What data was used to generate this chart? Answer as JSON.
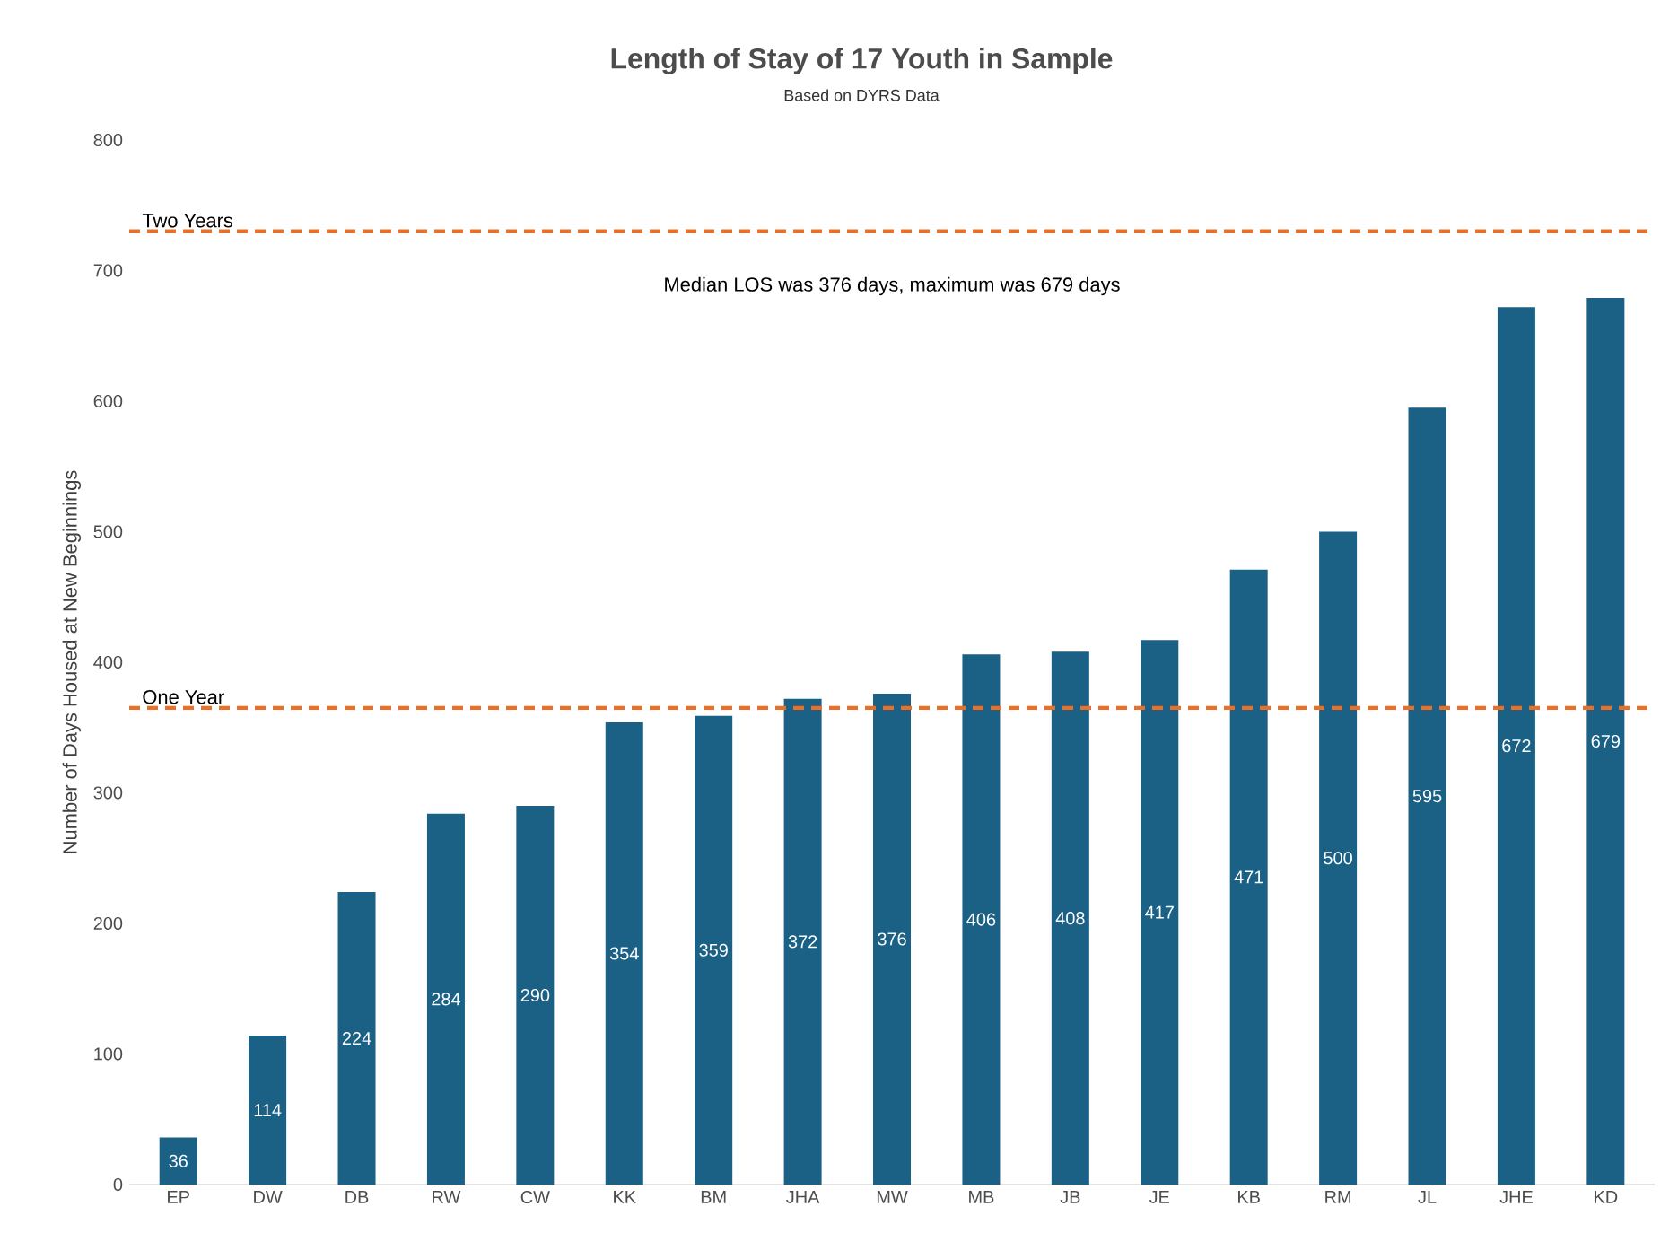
{
  "chart_data": {
    "type": "bar",
    "title": "Length of Stay of 17 Youth in Sample",
    "subtitle": "Based on DYRS Data",
    "ylabel": "Number of Days Housed at New Beginnings",
    "categories": [
      "EP",
      "DW",
      "DB",
      "RW",
      "CW",
      "KK",
      "BM",
      "JHA",
      "MW",
      "MB",
      "JB",
      "JE",
      "KB",
      "RM",
      "JL",
      "JHE",
      "KD"
    ],
    "values": [
      36,
      114,
      224,
      284,
      290,
      354,
      359,
      372,
      376,
      406,
      408,
      417,
      471,
      500,
      595,
      672,
      679
    ],
    "color": "#1a6185",
    "ylim": [
      0,
      800
    ],
    "yticks": [
      0,
      100,
      200,
      300,
      400,
      500,
      600,
      700,
      800
    ],
    "data_labels": true,
    "ref_lines": [
      {
        "axis": "y",
        "value": 730,
        "label": "Two Years",
        "color": "#e8702a",
        "line_style": "dashed"
      },
      {
        "axis": "y",
        "value": 365,
        "label": "One Year",
        "color": "#e8702a",
        "line_style": "dashed"
      }
    ],
    "annotations": [
      "Median LOS was 376 days, maximum was 679 days"
    ]
  }
}
